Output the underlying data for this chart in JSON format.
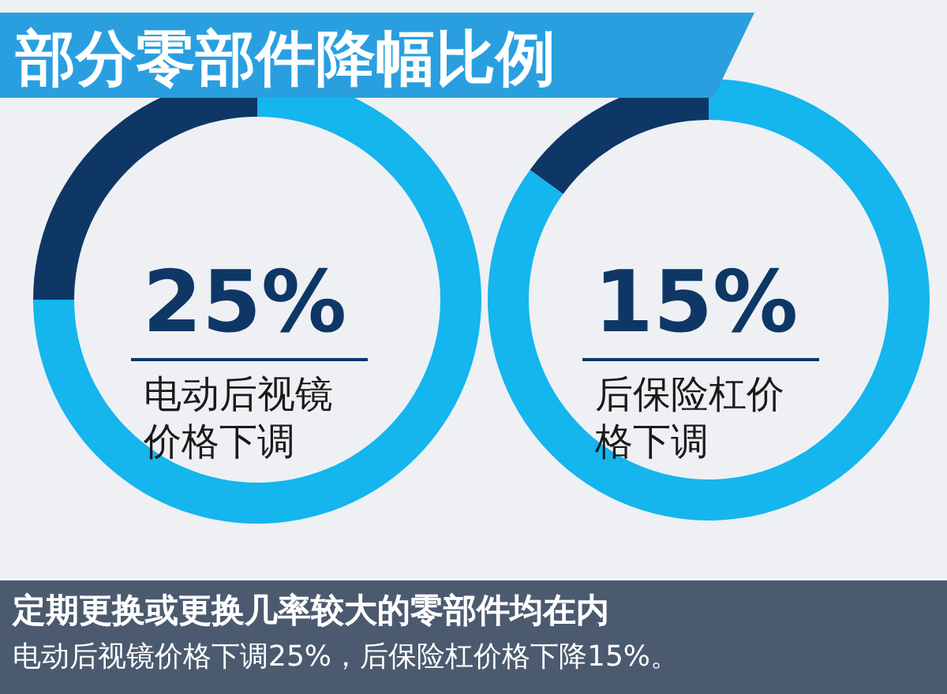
{
  "chart_data": [
    {
      "type": "donut",
      "title": "电动后视镜价格下调",
      "categories": [
        null,
        null
      ],
      "values": [
        25,
        75
      ],
      "colors": [
        "#0e3766",
        "#15b5ee"
      ],
      "annotations": [
        "25%"
      ]
    },
    {
      "type": "donut",
      "title": "后保险杠价格下调",
      "categories": [
        null,
        null
      ],
      "values": [
        15,
        85
      ],
      "colors": [
        "#0e3766",
        "#15b5ee"
      ],
      "annotations": [
        "15%"
      ]
    },
    {
      "type": "other",
      "title": "部分零部件降幅比例",
      "annotations": [
        "定期更换或更换几率较大的零部件均在内",
        "电动后视镜价格下调25%，后保险杠价格下降15%。"
      ]
    }
  ]
}
